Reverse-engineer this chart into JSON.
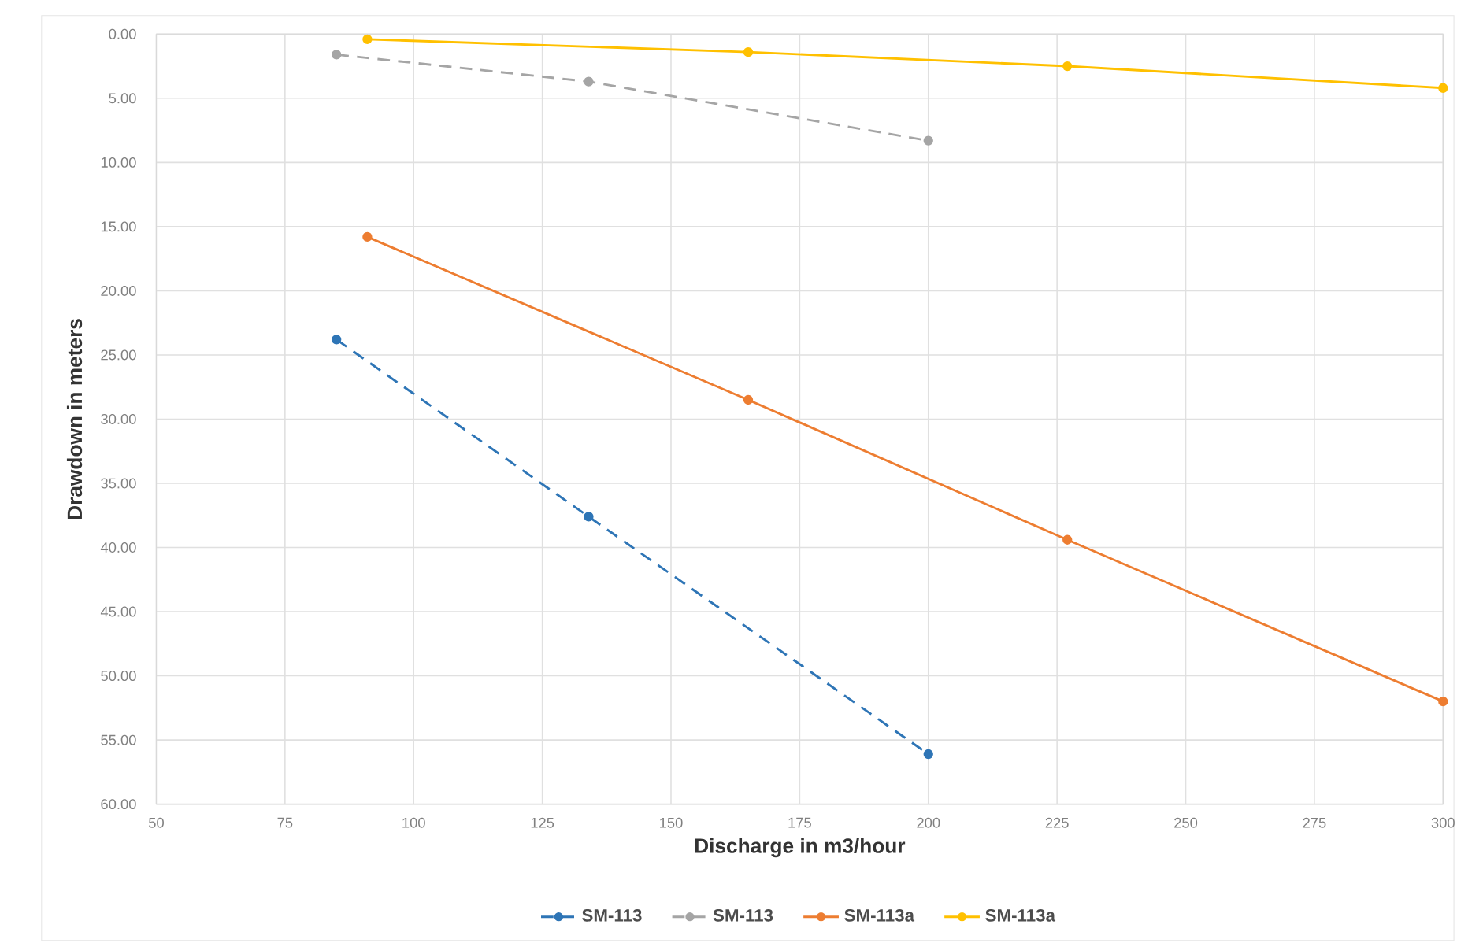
{
  "chart_data": {
    "type": "line",
    "xlabel": "Discharge in m3/hour",
    "ylabel": "Drawdown in meters",
    "xlim": [
      50,
      300
    ],
    "xticks": [
      50,
      75,
      100,
      125,
      150,
      175,
      200,
      225,
      250,
      275,
      300
    ],
    "ylim": [
      60,
      0
    ],
    "yticks": [
      {
        "value": 0,
        "label": "0.00"
      },
      {
        "value": 5,
        "label": "5.00"
      },
      {
        "value": 10,
        "label": "10.00"
      },
      {
        "value": 15,
        "label": "15.00"
      },
      {
        "value": 20,
        "label": "20.00"
      },
      {
        "value": 25,
        "label": "25.00"
      },
      {
        "value": 30,
        "label": "30.00"
      },
      {
        "value": 35,
        "label": "35.00"
      },
      {
        "value": 40,
        "label": "40.00"
      },
      {
        "value": 45,
        "label": "45.00"
      },
      {
        "value": 50,
        "label": "50.00"
      },
      {
        "value": 55,
        "label": "55.00"
      },
      {
        "value": 60,
        "label": "60.00"
      }
    ],
    "grid": true,
    "legend": "bottom",
    "marker": "circle",
    "series": [
      {
        "name": "SM-113",
        "color": "#2e75b6",
        "line_style": "dashed",
        "x": [
          85,
          134,
          200
        ],
        "values": [
          23.8,
          37.6,
          56.1
        ]
      },
      {
        "name": "SM-113",
        "color": "#a5a5a5",
        "line_style": "dashed",
        "x": [
          85,
          134,
          200
        ],
        "values": [
          1.6,
          3.7,
          8.3
        ]
      },
      {
        "name": "SM-113a",
        "color": "#ed7d31",
        "line_style": "solid",
        "x": [
          91,
          165,
          227,
          300
        ],
        "values": [
          15.8,
          28.5,
          39.4,
          52.0
        ]
      },
      {
        "name": "SM-113a",
        "color": "#ffc000",
        "line_style": "solid",
        "x": [
          91,
          165,
          227,
          300
        ],
        "values": [
          0.4,
          1.4,
          2.5,
          4.2
        ]
      }
    ]
  }
}
